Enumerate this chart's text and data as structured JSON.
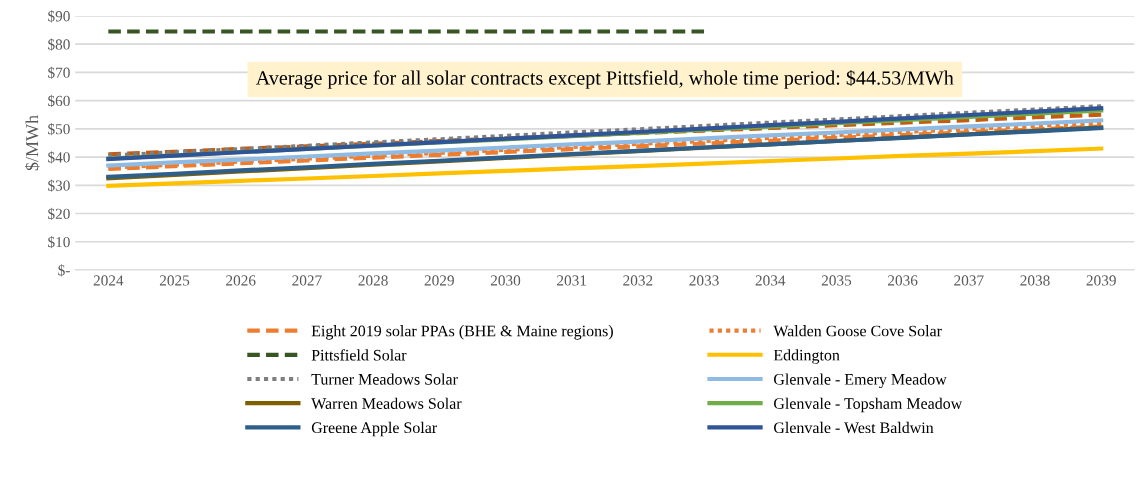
{
  "chart_data": {
    "type": "line",
    "ylabel": "$/MWh",
    "categories": [
      "2024",
      "2025",
      "2026",
      "2027",
      "2028",
      "2029",
      "2030",
      "2031",
      "2032",
      "2033",
      "2034",
      "2035",
      "2036",
      "2037",
      "2038",
      "2039"
    ],
    "ylim": [
      0,
      90
    ],
    "yticks": [
      {
        "value": 0,
        "label": "$-"
      },
      {
        "value": 10,
        "label": "$10"
      },
      {
        "value": 20,
        "label": "$20"
      },
      {
        "value": 30,
        "label": "$30"
      },
      {
        "value": 40,
        "label": "$40"
      },
      {
        "value": 50,
        "label": "$50"
      },
      {
        "value": 60,
        "label": "$60"
      },
      {
        "value": 70,
        "label": "$70"
      },
      {
        "value": 80,
        "label": "$80"
      },
      {
        "value": 90,
        "label": "$90"
      }
    ],
    "grid": "y",
    "legend": "bottom",
    "marker": "none",
    "annotations": [
      "Average price for all solar contracts except Pittsfield, whole time period: $44.53/MWh"
    ],
    "series": [
      {
        "name": "Eight 2019 solar PPAs (BHE & Maine regions)",
        "color": "#ed7d31",
        "line_style": "dashed",
        "values": [
          35.8,
          36.8,
          37.8,
          38.8,
          39.8,
          40.8,
          41.8,
          42.8,
          43.8,
          44.8,
          45.8,
          46.8,
          47.8,
          48.8,
          49.8,
          50.8
        ]
      },
      {
        "name": "Pittsfield Solar",
        "color": "#375623",
        "line_style": "dashed",
        "values": [
          84.5,
          84.5,
          84.5,
          84.5,
          84.5,
          84.5,
          84.5,
          84.5,
          84.5,
          84.5,
          null,
          null,
          null,
          null,
          null,
          null
        ]
      },
      {
        "color": "#c55a11",
        "line_style": "dashed",
        "values": [
          41,
          41.9,
          42.9,
          43.8,
          44.7,
          45.7,
          46.6,
          47.5,
          48.5,
          49.4,
          50.3,
          51.3,
          52.2,
          53.1,
          54.1,
          55
        ]
      },
      {
        "name": "Turner Meadows Solar",
        "color": "#7f7f7f",
        "line_style": "dotted",
        "values": [
          40.5,
          41.7,
          42.8,
          44,
          45.2,
          46.3,
          47.5,
          48.7,
          49.8,
          51,
          52.2,
          53.3,
          54.5,
          55.7,
          56.8,
          58
        ]
      },
      {
        "name": "Warren Meadows Solar",
        "color": "#7f6000",
        "line_style": "solid",
        "values": [
          32.5,
          33.7,
          34.9,
          36.1,
          37.3,
          38.5,
          39.7,
          40.9,
          42.1,
          43.3,
          44.5,
          45.7,
          46.9,
          48.1,
          49.3,
          50.5
        ]
      },
      {
        "name": "Greene Apple Solar",
        "color": "#2e5f8a",
        "line_style": "solid",
        "values": [
          33,
          34.1,
          35.3,
          36.4,
          37.6,
          38.7,
          39.9,
          41.1,
          42.2,
          43.4,
          44.5,
          45.7,
          46.8,
          48,
          49.1,
          50.3
        ]
      },
      {
        "name": "Walden Goose Cove Solar",
        "color": "#ed7d31",
        "line_style": "dotted",
        "values": [
          36.3,
          37.3,
          38.4,
          39.4,
          40.5,
          41.5,
          42.6,
          43.6,
          44.7,
          45.7,
          46.8,
          47.8,
          48.9,
          49.9,
          51,
          52
        ]
      },
      {
        "name": "Eddington",
        "color": "#ffc000",
        "line_style": "solid",
        "values": [
          29.8,
          30.7,
          31.6,
          32.4,
          33.3,
          34.2,
          35.1,
          36,
          36.8,
          37.7,
          38.6,
          39.5,
          40.4,
          41.2,
          42.1,
          43
        ]
      },
      {
        "name": "Glenvale - Emery Meadow",
        "color": "#8fbbe3",
        "line_style": "solid",
        "values": [
          37,
          38.1,
          39.1,
          40.2,
          41.3,
          42.3,
          43.4,
          44.5,
          45.5,
          46.6,
          47.7,
          48.7,
          49.8,
          50.9,
          51.9,
          53
        ]
      },
      {
        "name": "Glenvale - Topsham Meadow",
        "color": "#70ad47",
        "line_style": "solid",
        "values": [
          39.5,
          40.6,
          41.8,
          42.9,
          44,
          45.2,
          46.3,
          47.4,
          48.6,
          49.7,
          50.8,
          52,
          53.1,
          54.2,
          55.4,
          56.5
        ]
      },
      {
        "name": "Glenvale - West Baldwin",
        "color": "#2f5597",
        "line_style": "solid",
        "values": [
          39.3,
          40.5,
          41.7,
          42.9,
          44.1,
          45.3,
          46.5,
          47.7,
          48.9,
          50.1,
          51.3,
          52.5,
          53.7,
          54.9,
          56.1,
          57.3
        ]
      }
    ]
  }
}
